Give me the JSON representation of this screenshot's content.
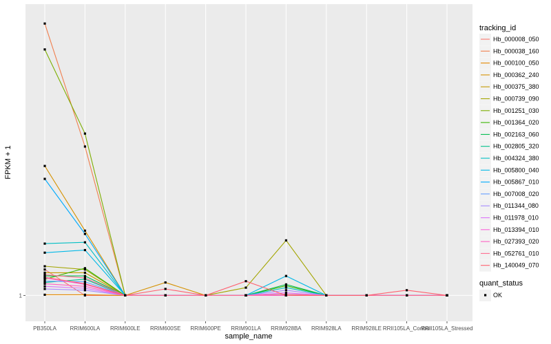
{
  "chart_data": {
    "type": "line",
    "xlabel": "sample_name",
    "ylabel": "FPKM + 1",
    "y_ticks": [
      1
    ],
    "y_tick_labels": [
      "1"
    ],
    "ylim": [
      0.96,
      1.45
    ],
    "grid": true,
    "legend_position": "right",
    "categories": [
      "PB350LA",
      "RRIM600LA",
      "RRIM600LE",
      "RRIM600SE",
      "RRIM600PE",
      "RRIM901LA",
      "RRIM928BA",
      "RRIM928LA",
      "RRIM928LE",
      "RRII105LA_Control",
      "RRII105LA_Stressed"
    ],
    "legend_title": "tracking_id",
    "shape_legend": {
      "title": "quant_status",
      "items": [
        "OK"
      ]
    },
    "series": [
      {
        "name": "Hb_000008_050",
        "color": "#F8766D",
        "values": [
          1.04,
          1.0,
          1.0,
          1.0,
          1.0,
          1.0,
          1.0,
          1.0,
          1.0,
          1.0,
          1.0
        ]
      },
      {
        "name": "Hb_000038_160",
        "color": "#F07E4D",
        "values": [
          1.42,
          1.23,
          1.0,
          1.0,
          1.0,
          1.0,
          1.0,
          1.0,
          1.0,
          1.0,
          1.0
        ]
      },
      {
        "name": "Hb_000100_050",
        "color": "#E38900",
        "values": [
          1.001,
          1.001,
          1.0,
          1.0,
          1.0,
          1.0,
          1.0,
          1.0,
          1.0,
          1.0,
          1.0
        ]
      },
      {
        "name": "Hb_000362_240",
        "color": "#D59100",
        "values": [
          1.2,
          1.1,
          1.0,
          1.02,
          1.0,
          1.0,
          1.0,
          1.0,
          1.0,
          1.0,
          1.0
        ]
      },
      {
        "name": "Hb_000375_380",
        "color": "#C49A00",
        "values": [
          1.035,
          1.035,
          1.0,
          1.0,
          1.0,
          1.0,
          1.0,
          1.0,
          1.0,
          1.0,
          1.0
        ]
      },
      {
        "name": "Hb_000739_090",
        "color": "#A3A500",
        "values": [
          1.045,
          1.04,
          1.0,
          1.0,
          1.0,
          1.012,
          1.085,
          1.0,
          1.0,
          1.0,
          1.0
        ]
      },
      {
        "name": "Hb_001251_030",
        "color": "#7CAE00",
        "values": [
          1.38,
          1.25,
          1.0,
          1.0,
          1.0,
          1.0,
          1.0,
          1.0,
          1.0,
          1.0,
          1.0
        ]
      },
      {
        "name": "Hb_001364_020",
        "color": "#39B600",
        "values": [
          1.025,
          1.042,
          1.0,
          1.0,
          1.0,
          1.0,
          1.015,
          1.0,
          1.0,
          1.0,
          1.0
        ]
      },
      {
        "name": "Hb_002163_060",
        "color": "#00BB4E",
        "values": [
          1.03,
          1.03,
          1.0,
          1.0,
          1.0,
          1.0,
          1.017,
          1.0,
          1.0,
          1.0,
          1.0
        ]
      },
      {
        "name": "Hb_002805_320",
        "color": "#00C08B",
        "values": [
          1.02,
          1.025,
          1.0,
          1.0,
          1.0,
          1.0,
          1.0,
          1.0,
          1.0,
          1.0,
          1.0
        ]
      },
      {
        "name": "Hb_004324_380",
        "color": "#00BFC4",
        "values": [
          1.08,
          1.082,
          1.0,
          1.0,
          1.0,
          1.0,
          1.012,
          1.0,
          1.0,
          1.0,
          1.0
        ]
      },
      {
        "name": "Hb_005800_040",
        "color": "#00B8E7",
        "values": [
          1.066,
          1.07,
          1.0,
          1.0,
          1.0,
          1.0,
          1.03,
          1.0,
          1.0,
          1.0,
          1.0
        ]
      },
      {
        "name": "Hb_005867_010",
        "color": "#00ABFD",
        "values": [
          1.18,
          1.095,
          1.0,
          1.0,
          1.0,
          1.0,
          1.0,
          1.0,
          1.0,
          1.0,
          1.0
        ]
      },
      {
        "name": "Hb_007008_020",
        "color": "#619CFF",
        "values": [
          1.022,
          1.021,
          1.0,
          1.0,
          1.0,
          1.0,
          1.0,
          1.0,
          1.0,
          1.0,
          1.0
        ]
      },
      {
        "name": "Hb_011344_080",
        "color": "#A58AFF",
        "values": [
          1.01,
          1.008,
          1.0,
          1.0,
          1.0,
          1.0,
          1.008,
          1.0,
          1.0,
          1.0,
          1.0
        ]
      },
      {
        "name": "Hb_011978_010",
        "color": "#DB72FB",
        "values": [
          1.014,
          1.011,
          1.0,
          1.0,
          1.0,
          1.0,
          1.004,
          1.0,
          1.0,
          1.0,
          1.0
        ]
      },
      {
        "name": "Hb_013394_010",
        "color": "#FA62DB",
        "values": [
          1.027,
          1.017,
          1.0,
          1.0,
          1.0,
          1.0,
          1.0,
          1.0,
          1.0,
          1.0,
          1.0
        ]
      },
      {
        "name": "Hb_027393_020",
        "color": "#FF61C3",
        "values": [
          1.018,
          1.014,
          1.0,
          1.0,
          1.0,
          1.0,
          1.0,
          1.0,
          1.0,
          1.0,
          1.0
        ]
      },
      {
        "name": "Hb_052761_010",
        "color": "#FF6C90",
        "values": [
          1.032,
          1.027,
          1.0,
          1.0,
          1.0,
          1.0,
          1.002,
          1.0,
          1.0,
          1.0,
          1.0
        ]
      },
      {
        "name": "Hb_140049_070",
        "color": "#FF5F6E",
        "values": [
          1.028,
          1.018,
          1.0,
          1.01,
          1.0,
          1.022,
          1.0,
          1.0,
          1.0,
          1.008,
          1.0
        ]
      }
    ]
  }
}
